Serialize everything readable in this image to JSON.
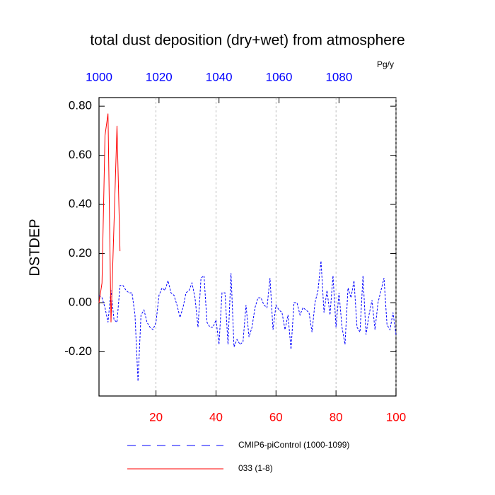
{
  "chart_data": {
    "type": "line",
    "title": "total dust deposition (dry+wet) from atmosphere",
    "units": "Pg/y",
    "ylabel": "DSTDEP",
    "xlim": [
      1,
      100
    ],
    "xticks": [
      20,
      40,
      60,
      80,
      100
    ],
    "xtick_color": "red",
    "x2lim": [
      1000,
      1099
    ],
    "x2ticks": [
      1000,
      1020,
      1040,
      1060,
      1080
    ],
    "x2tick_color": "blue",
    "ylim": [
      -0.38,
      0.835
    ],
    "yticks": [
      {
        "value": -0.2,
        "label": "-0.20"
      },
      {
        "value": 0,
        "label": "0.00"
      },
      {
        "value": 0.2,
        "label": "0.20"
      },
      {
        "value": 0.4,
        "label": "0.40"
      },
      {
        "value": 0.6,
        "label": "0.60"
      },
      {
        "value": 0.8,
        "label": "0.80"
      }
    ],
    "grid": true,
    "series": [
      {
        "name": "CMIP6-piControl (1000-1099)",
        "color": "blue",
        "linestyle": "dashed",
        "x": [
          1,
          2,
          3,
          4,
          5,
          6,
          7,
          8,
          9,
          10,
          11,
          12,
          13,
          14,
          15,
          16,
          17,
          18,
          19,
          20,
          21,
          22,
          23,
          24,
          25,
          26,
          27,
          28,
          29,
          30,
          31,
          32,
          33,
          34,
          35,
          36,
          37,
          38,
          39,
          40,
          41,
          42,
          43,
          44,
          45,
          46,
          47,
          48,
          49,
          50,
          51,
          52,
          53,
          54,
          55,
          56,
          57,
          58,
          59,
          60,
          61,
          62,
          63,
          64,
          65,
          66,
          67,
          68,
          69,
          70,
          71,
          72,
          73,
          74,
          75,
          76,
          77,
          78,
          79,
          80,
          81,
          82,
          83,
          84,
          85,
          86,
          87,
          88,
          89,
          90,
          91,
          92,
          93,
          94,
          95,
          96,
          97,
          98,
          99,
          100
        ],
        "values": [
          0.03,
          0.02,
          -0.02,
          -0.08,
          0.05,
          -0.07,
          -0.08,
          0.07,
          0.07,
          0.05,
          0.04,
          0.04,
          -0.05,
          -0.32,
          -0.05,
          -0.03,
          -0.08,
          -0.1,
          -0.11,
          -0.08,
          0.03,
          0.06,
          0.05,
          0.09,
          0.04,
          0.03,
          -0.01,
          -0.06,
          -0.02,
          0.04,
          0.05,
          0.08,
          0.02,
          -0.1,
          0.1,
          0.11,
          -0.08,
          -0.1,
          -0.1,
          -0.07,
          -0.17,
          0.04,
          0.04,
          -0.17,
          0.12,
          -0.18,
          -0.15,
          -0.17,
          -0.16,
          -0.01,
          -0.14,
          -0.1,
          -0.02,
          0.02,
          0.02,
          -0.01,
          -0.02,
          0.1,
          -0.11,
          -0.01,
          -0.03,
          -0.04,
          -0.11,
          -0.05,
          -0.19,
          0.0,
          0.0,
          -0.05,
          -0.02,
          -0.03,
          -0.04,
          -0.12,
          0.0,
          0.05,
          0.17,
          -0.04,
          0.05,
          -0.05,
          0.11,
          -0.1,
          0.04,
          -0.1,
          -0.17,
          0.06,
          0.02,
          0.09,
          -0.1,
          -0.12,
          0.11,
          -0.13,
          -0.05,
          0.01,
          -0.11,
          0.0,
          0.05,
          0.1,
          -0.09,
          -0.11,
          -0.04,
          -0.13
        ]
      },
      {
        "name": "033 (1-8)",
        "color": "red",
        "linestyle": "solid",
        "x": [
          1,
          2,
          3,
          4,
          5,
          6,
          7,
          8
        ],
        "values": [
          0.0,
          0.08,
          0.68,
          0.77,
          -0.08,
          0.32,
          0.72,
          0.21
        ]
      }
    ]
  }
}
